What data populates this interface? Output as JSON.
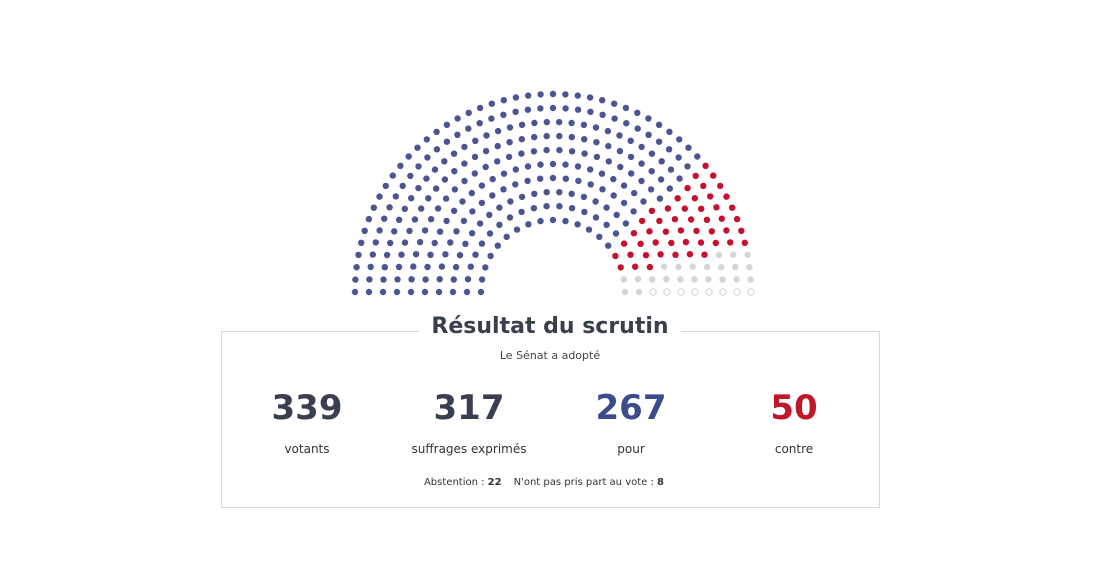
{
  "title": "Résultat du scrutin",
  "subtitle": "Le Sénat a adopté",
  "stats": [
    {
      "value": 339,
      "label": "votants",
      "color": "#3a3f4f"
    },
    {
      "value": 317,
      "label": "suffrages exprimés",
      "color": "#3a3f4f"
    },
    {
      "value": 267,
      "label": "pour",
      "color": "#3d4b8a"
    },
    {
      "value": 50,
      "label": "contre",
      "color": "#c0182a"
    }
  ],
  "footer": [
    {
      "label": "Abstention :",
      "value": 22
    },
    {
      "label": "N'ont pas pris part au vote :",
      "value": 8
    }
  ]
}
